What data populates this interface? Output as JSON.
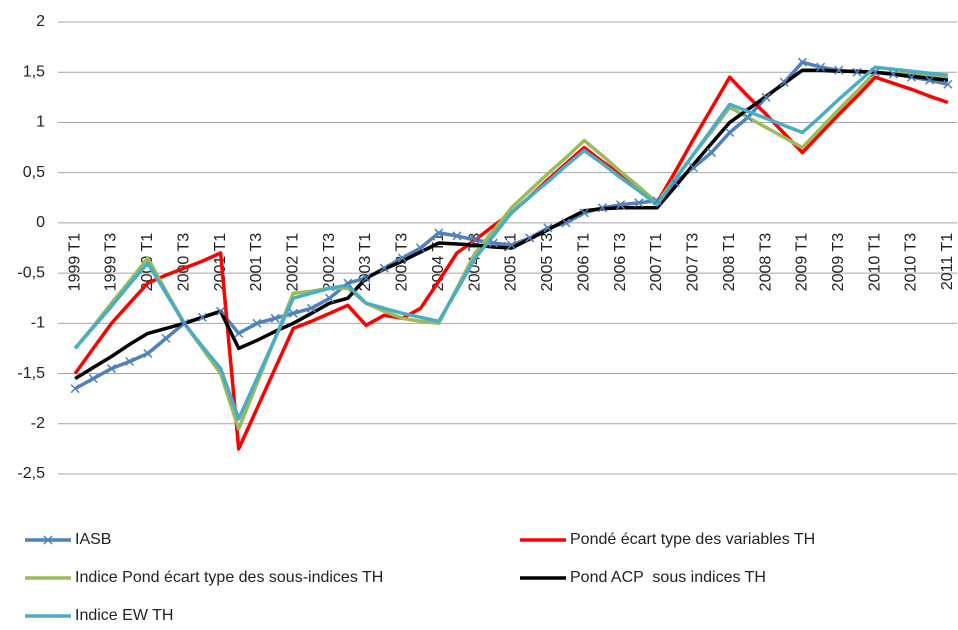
{
  "chart_data": {
    "type": "line",
    "categories": [
      "1999 T1",
      null,
      "1999 T3",
      null,
      "2000 T1",
      null,
      "2000 T3",
      null,
      "2001 T1",
      null,
      "2001 T3",
      null,
      "2002 T1",
      null,
      "2002 T3",
      null,
      "2003 T1",
      null,
      "2003 T3",
      null,
      "2004 T1",
      null,
      "2004 T3",
      null,
      "2005 T1",
      null,
      "2005 T3",
      null,
      "2006 T1",
      null,
      "2006 T3",
      null,
      "2007 T1",
      null,
      "2007 T3",
      null,
      "2008 T1",
      null,
      "2008 T3",
      null,
      "2009 T1",
      null,
      "2009 T3",
      null,
      "2010 T1",
      null,
      "2010 T3",
      null,
      "2011 T1"
    ],
    "series": [
      {
        "name": "IASB",
        "color": "#4f81bd",
        "marker": "x",
        "values": [
          -1.65,
          -1.55,
          -1.45,
          -1.38,
          -1.3,
          -1.15,
          -1.0,
          -0.94,
          -0.88,
          -1.1,
          -1.0,
          -0.95,
          -0.9,
          -0.85,
          -0.75,
          -0.6,
          -0.55,
          -0.45,
          -0.35,
          -0.25,
          -0.1,
          -0.13,
          -0.17,
          -0.2,
          -0.22,
          -0.15,
          -0.05,
          0.0,
          0.1,
          0.15,
          0.18,
          0.2,
          0.22,
          0.4,
          0.55,
          0.7,
          0.9,
          1.05,
          1.25,
          1.4,
          1.6,
          1.55,
          1.52,
          1.5,
          1.5,
          1.48,
          1.45,
          1.42,
          1.38
        ]
      },
      {
        "name": "Pondé écart type des variables TH",
        "color": "#ff0000",
        "values": [
          -1.5,
          -1.25,
          -1.0,
          -0.8,
          -0.6,
          -0.52,
          -0.45,
          -0.38,
          -0.3,
          -2.25,
          -1.85,
          -1.45,
          -1.05,
          -0.98,
          -0.9,
          -0.82,
          -1.02,
          -0.92,
          -0.95,
          -0.85,
          -0.58,
          -0.3,
          -0.17,
          -0.03,
          0.1,
          0.26,
          0.43,
          0.59,
          0.75,
          0.61,
          0.48,
          0.34,
          0.2,
          0.51,
          0.83,
          1.14,
          1.45,
          1.26,
          1.08,
          0.89,
          0.7,
          0.89,
          1.08,
          1.26,
          1.45,
          1.39,
          1.33,
          1.26,
          1.2
        ]
      },
      {
        "name": "Indice Pond écart type des sous-indices TH",
        "color": "#9bbb59",
        "values": [
          -1.25,
          -1.03,
          -0.8,
          -0.58,
          -0.35,
          -0.68,
          -1.0,
          -1.25,
          -1.5,
          -2.05,
          -1.6,
          -1.15,
          -0.7,
          -0.68,
          -0.65,
          -0.65,
          -0.8,
          -0.88,
          -0.95,
          -0.98,
          -1.0,
          -0.65,
          -0.3,
          -0.08,
          0.15,
          0.32,
          0.49,
          0.65,
          0.82,
          0.67,
          0.51,
          0.36,
          0.2,
          0.44,
          0.68,
          0.91,
          1.15,
          1.05,
          0.95,
          0.85,
          0.75,
          0.94,
          1.13,
          1.31,
          1.5,
          1.49,
          1.48,
          1.46,
          1.45
        ]
      },
      {
        "name": "Pond ACP  sous indices TH",
        "color": "#000000",
        "values": [
          -1.55,
          -1.44,
          -1.33,
          -1.21,
          -1.1,
          -1.05,
          -1.0,
          -0.94,
          -0.88,
          -1.25,
          -1.17,
          -1.08,
          -1.0,
          -0.9,
          -0.8,
          -0.75,
          -0.55,
          -0.46,
          -0.38,
          -0.29,
          -0.2,
          -0.21,
          -0.22,
          -0.24,
          -0.25,
          -0.16,
          -0.07,
          0.03,
          0.12,
          0.14,
          0.15,
          0.15,
          0.15,
          0.36,
          0.58,
          0.79,
          1.0,
          1.13,
          1.26,
          1.39,
          1.52,
          1.52,
          1.51,
          1.51,
          1.5,
          1.48,
          1.46,
          1.44,
          1.42
        ]
      },
      {
        "name": "Indice EW TH",
        "color": "#4bacc6",
        "values": [
          -1.25,
          -1.04,
          -0.83,
          -0.61,
          -0.4,
          -0.7,
          -1.0,
          -1.23,
          -1.45,
          -1.95,
          -1.55,
          -1.15,
          -0.75,
          -0.7,
          -0.65,
          -0.62,
          -0.8,
          -0.85,
          -0.9,
          -0.94,
          -0.98,
          -0.67,
          -0.35,
          -0.13,
          0.1,
          0.26,
          0.41,
          0.57,
          0.72,
          0.59,
          0.45,
          0.32,
          0.18,
          0.43,
          0.68,
          0.93,
          1.18,
          1.11,
          1.04,
          0.97,
          0.9,
          1.06,
          1.23,
          1.39,
          1.55,
          1.53,
          1.51,
          1.49,
          1.47
        ]
      }
    ],
    "ylim": [
      -2.5,
      2
    ],
    "yticks": [
      -2.5,
      -2,
      -1.5,
      -1,
      -0.5,
      0,
      0.5,
      1,
      1.5,
      2
    ],
    "ytick_labels": [
      "-2,5",
      "-2",
      "-1,5",
      "-1",
      "-0,5",
      "0",
      "0,5",
      "1",
      "1,5",
      "2"
    ],
    "grid": true,
    "legend": "bottom"
  }
}
